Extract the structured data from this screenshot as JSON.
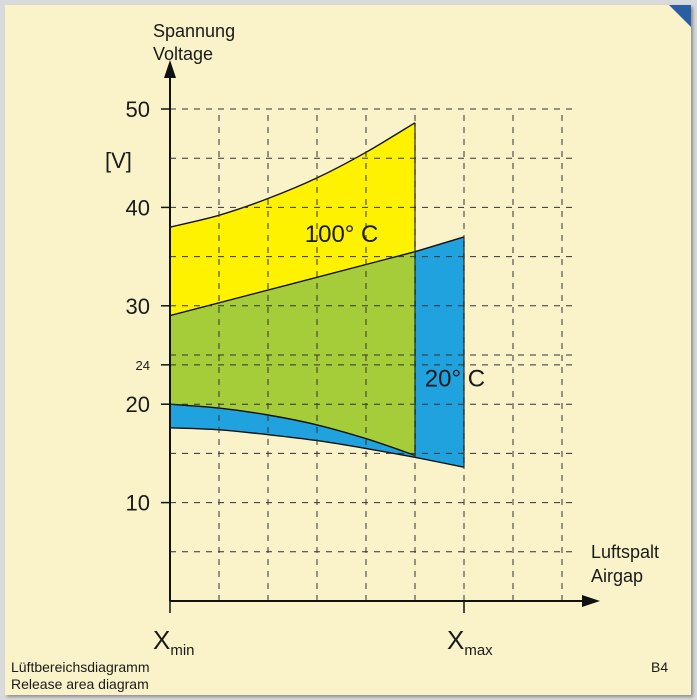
{
  "chart_data": {
    "type": "area",
    "title": "",
    "ylabel_lines": [
      "Spannung",
      "Voltage"
    ],
    "y_unit": "[V]",
    "xlabel_lines": [
      "Luftspalt",
      "Airgap"
    ],
    "x_ticks": [
      {
        "main": "X",
        "sub": "min",
        "value": 0
      },
      {
        "main": "X",
        "sub": "max",
        "value": 6
      }
    ],
    "y_ticks": [
      {
        "label": "10",
        "value": 10,
        "size": "large"
      },
      {
        "label": "20",
        "value": 20,
        "size": "large"
      },
      {
        "label": "24",
        "value": 24,
        "size": "small"
      },
      {
        "label": "30",
        "value": 30,
        "size": "large"
      },
      {
        "label": "40",
        "value": 40,
        "size": "large"
      },
      {
        "label": "50",
        "value": 50,
        "size": "large"
      }
    ],
    "xlim": [
      0,
      8.6
    ],
    "ylim": [
      0,
      55
    ],
    "grid": true,
    "regions": [
      {
        "name": "100° C",
        "color": "#fff200",
        "upper": [
          [
            0,
            38.0
          ],
          [
            1,
            39.2
          ],
          [
            2,
            40.9
          ],
          [
            3,
            43.0
          ],
          [
            4,
            45.6
          ],
          [
            5,
            48.6
          ]
        ],
        "lower": [
          [
            0,
            29.0
          ],
          [
            5,
            35.5
          ]
        ]
      },
      {
        "color": "#a5cd39",
        "upper": [
          [
            0,
            29.0
          ],
          [
            5,
            35.5
          ]
        ],
        "lower": [
          [
            0,
            20.0
          ],
          [
            1,
            19.6
          ],
          [
            2,
            18.9
          ],
          [
            3,
            17.9
          ],
          [
            4,
            16.5
          ],
          [
            5,
            14.8
          ]
        ]
      },
      {
        "name": "20° C",
        "color": "#1fa2de",
        "upper": [
          [
            0,
            20.0
          ],
          [
            1,
            19.6
          ],
          [
            2,
            18.9
          ],
          [
            3,
            17.9
          ],
          [
            4,
            16.5
          ],
          [
            5,
            14.8
          ]
        ],
        "lower": [
          [
            0,
            17.6
          ],
          [
            1,
            17.4
          ],
          [
            2,
            16.9
          ],
          [
            3,
            16.3
          ],
          [
            4,
            15.5
          ],
          [
            5,
            14.6
          ]
        ]
      },
      {
        "color": "#1fa2de",
        "upper": [
          [
            5,
            35.5
          ],
          [
            6,
            37.0
          ]
        ],
        "lower": [
          [
            5,
            14.6
          ],
          [
            6,
            13.6
          ]
        ]
      }
    ],
    "labels": [
      {
        "text": "100° C",
        "x": 2.75,
        "y": 36.5
      },
      {
        "text": "20° C",
        "x": 5.2,
        "y": 21.8
      }
    ]
  },
  "caption": {
    "line1": "Lüftbereichsdiagramm",
    "line2": "Release area diagram",
    "code": "B4"
  },
  "colors": {
    "panel": "#faf3c9",
    "frame": "#d9dadb",
    "corner": "#2a5ea3",
    "axis": "#111111",
    "grid": "#333333"
  }
}
